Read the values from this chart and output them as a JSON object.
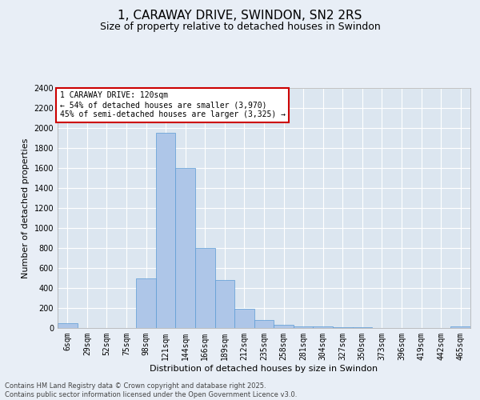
{
  "title": "1, CARAWAY DRIVE, SWINDON, SN2 2RS",
  "subtitle": "Size of property relative to detached houses in Swindon",
  "xlabel": "Distribution of detached houses by size in Swindon",
  "ylabel": "Number of detached properties",
  "footer_line1": "Contains HM Land Registry data © Crown copyright and database right 2025.",
  "footer_line2": "Contains public sector information licensed under the Open Government Licence v3.0.",
  "categories": [
    "6sqm",
    "29sqm",
    "52sqm",
    "75sqm",
    "98sqm",
    "121sqm",
    "144sqm",
    "166sqm",
    "189sqm",
    "212sqm",
    "235sqm",
    "258sqm",
    "281sqm",
    "304sqm",
    "327sqm",
    "350sqm",
    "373sqm",
    "396sqm",
    "419sqm",
    "442sqm",
    "465sqm"
  ],
  "values": [
    50,
    0,
    0,
    0,
    500,
    1950,
    1600,
    800,
    480,
    195,
    80,
    35,
    20,
    15,
    5,
    5,
    0,
    0,
    0,
    0,
    15
  ],
  "bar_color": "#aec6e8",
  "bar_edge_color": "#5b9bd5",
  "annotation_text": "1 CARAWAY DRIVE: 120sqm\n← 54% of detached houses are smaller (3,970)\n45% of semi-detached houses are larger (3,325) →",
  "annotation_box_color": "#ffffff",
  "annotation_box_edge_color": "#cc0000",
  "ylim": [
    0,
    2400
  ],
  "yticks": [
    0,
    200,
    400,
    600,
    800,
    1000,
    1200,
    1400,
    1600,
    1800,
    2000,
    2200,
    2400
  ],
  "bg_color": "#e8eef6",
  "plot_bg_color": "#dce6f0",
  "grid_color": "#ffffff",
  "title_fontsize": 11,
  "subtitle_fontsize": 9,
  "axis_label_fontsize": 8,
  "tick_fontsize": 7,
  "annotation_fontsize": 7,
  "footer_fontsize": 6,
  "ylabel_fontsize": 8
}
